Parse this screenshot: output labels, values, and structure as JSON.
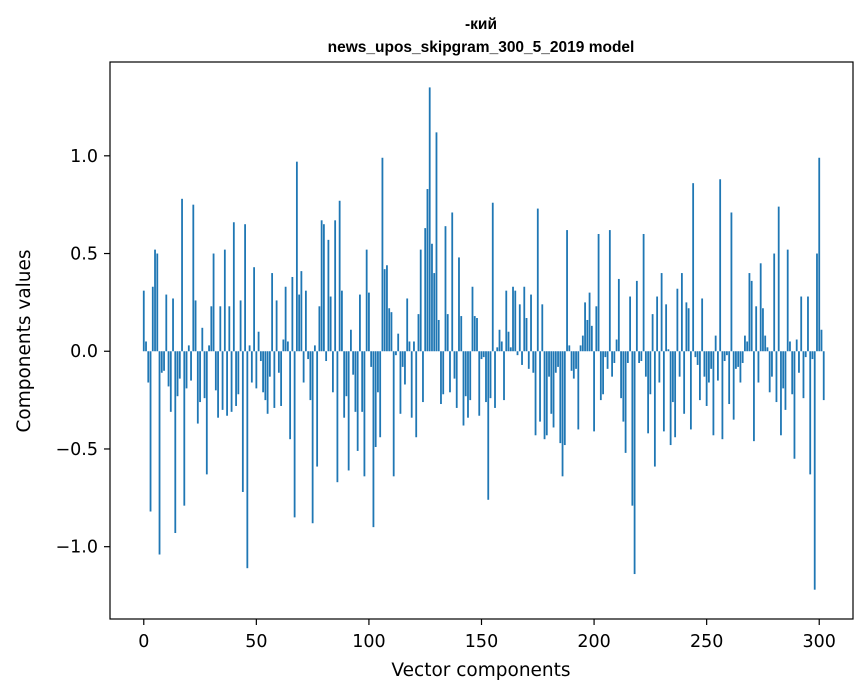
{
  "chart_data": {
    "type": "bar",
    "title": "-кий",
    "subtitle": "news_upos_skipgram_300_5_2019 model",
    "xlabel": "Vector components",
    "ylabel": "Components values",
    "xlim": [
      -15,
      315
    ],
    "ylim": [
      -1.37,
      1.48
    ],
    "xticks": [
      0,
      50,
      100,
      150,
      200,
      250,
      300
    ],
    "xtick_labels": [
      "0",
      "50",
      "100",
      "150",
      "200",
      "250",
      "300"
    ],
    "yticks": [
      -1.0,
      -0.5,
      0.0,
      0.5,
      1.0
    ],
    "ytick_labels": [
      "−1.0",
      "−0.5",
      "0.0",
      "0.5",
      "1.0"
    ],
    "grid": false,
    "bar_color": "#1f77b4",
    "values": [
      0.31,
      0.05,
      -0.16,
      -0.82,
      0.33,
      0.52,
      0.5,
      -1.04,
      -0.11,
      -0.1,
      0.29,
      -0.18,
      -0.31,
      0.27,
      -0.93,
      -0.23,
      -0.14,
      0.78,
      -0.79,
      -0.19,
      0.03,
      -0.15,
      0.75,
      0.26,
      -0.37,
      -0.26,
      0.12,
      -0.24,
      -0.63,
      0.03,
      0.23,
      0.5,
      -0.2,
      -0.34,
      0.23,
      -0.3,
      0.52,
      -0.33,
      0.23,
      -0.31,
      0.66,
      -0.28,
      -0.22,
      0.26,
      -0.72,
      0.65,
      -1.11,
      0.03,
      -0.16,
      0.43,
      -0.19,
      0.1,
      -0.05,
      -0.21,
      -0.25,
      -0.32,
      -0.13,
      0.4,
      -0.29,
      0.26,
      -0.11,
      -0.28,
      0.06,
      0.33,
      0.05,
      -0.45,
      0.38,
      -0.85,
      0.97,
      0.29,
      0.41,
      -0.16,
      0.31,
      -0.04,
      -0.25,
      -0.88,
      0.03,
      -0.59,
      0.23,
      0.67,
      0.65,
      -0.05,
      0.57,
      0.28,
      -0.21,
      0.67,
      -0.67,
      0.77,
      0.31,
      -0.34,
      -0.23,
      -0.61,
      0.11,
      -0.12,
      -0.31,
      -0.51,
      0.29,
      -0.31,
      -0.64,
      0.52,
      0.3,
      -0.08,
      -0.9,
      -0.49,
      -0.21,
      -0.44,
      0.99,
      0.42,
      0.44,
      0.22,
      0.2,
      -0.64,
      -0.02,
      0.09,
      -0.32,
      -0.08,
      -0.17,
      0.27,
      0.05,
      -0.34,
      0.05,
      -0.44,
      0.19,
      0.52,
      -0.26,
      0.63,
      0.83,
      1.35,
      0.55,
      0.4,
      1.12,
      0.16,
      -0.27,
      -0.22,
      0.64,
      0.19,
      -0.21,
      0.71,
      -0.14,
      -0.29,
      0.48,
      0.18,
      -0.38,
      -0.23,
      -0.34,
      -0.25,
      0.33,
      0.18,
      0.17,
      -0.33,
      -0.04,
      -0.03,
      -0.26,
      -0.76,
      -0.24,
      0.76,
      -0.29,
      0.02,
      0.11,
      0.05,
      -0.25,
      0.31,
      0.1,
      0.02,
      0.33,
      0.31,
      -0.02,
      0.24,
      -0.07,
      0.33,
      0.17,
      -0.09,
      0.29,
      -0.11,
      -0.43,
      0.73,
      -0.36,
      0.24,
      -0.45,
      -0.43,
      -0.13,
      -0.32,
      -0.39,
      -0.11,
      -0.08,
      -0.47,
      -0.64,
      -0.48,
      0.62,
      0.03,
      -0.1,
      -0.14,
      -0.09,
      -0.4,
      0.03,
      0.08,
      0.25,
      0.16,
      0.3,
      0.13,
      -0.41,
      0.23,
      0.6,
      -0.25,
      -0.22,
      -0.03,
      -0.09,
      0.62,
      -0.13,
      -0.06,
      0.06,
      0.37,
      -0.24,
      -0.36,
      -0.52,
      -0.06,
      0.28,
      -0.79,
      -1.14,
      0.36,
      -0.06,
      -0.05,
      0.6,
      -0.13,
      -0.42,
      -0.22,
      0.19,
      -0.59,
      0.28,
      -0.16,
      0.4,
      -0.41,
      0.24,
      0.01,
      -0.48,
      -0.26,
      -0.44,
      0.32,
      -0.13,
      0.4,
      -0.32,
      0.25,
      0.22,
      -0.4,
      0.86,
      -0.03,
      -0.07,
      -0.25,
      0.27,
      -0.13,
      -0.28,
      -0.16,
      -0.09,
      -0.43,
      0.08,
      -0.15,
      0.88,
      -0.45,
      -0.05,
      -0.02,
      -0.27,
      0.71,
      -0.35,
      -0.09,
      -0.08,
      -0.16,
      -0.06,
      0.08,
      0.05,
      0.4,
      0.36,
      -0.46,
      0.23,
      -0.16,
      0.45,
      0.22,
      0.08,
      0.02,
      -0.21,
      -0.13,
      0.5,
      -0.26,
      0.74,
      -0.43,
      -0.19,
      -0.3,
      0.52,
      0.05,
      -0.22,
      -0.55,
      0.06,
      -0.11,
      0.28,
      -0.24,
      -0.03,
      0.28,
      -0.63,
      -0.04,
      -1.22,
      0.5,
      0.99,
      0.11,
      -0.25
    ]
  }
}
